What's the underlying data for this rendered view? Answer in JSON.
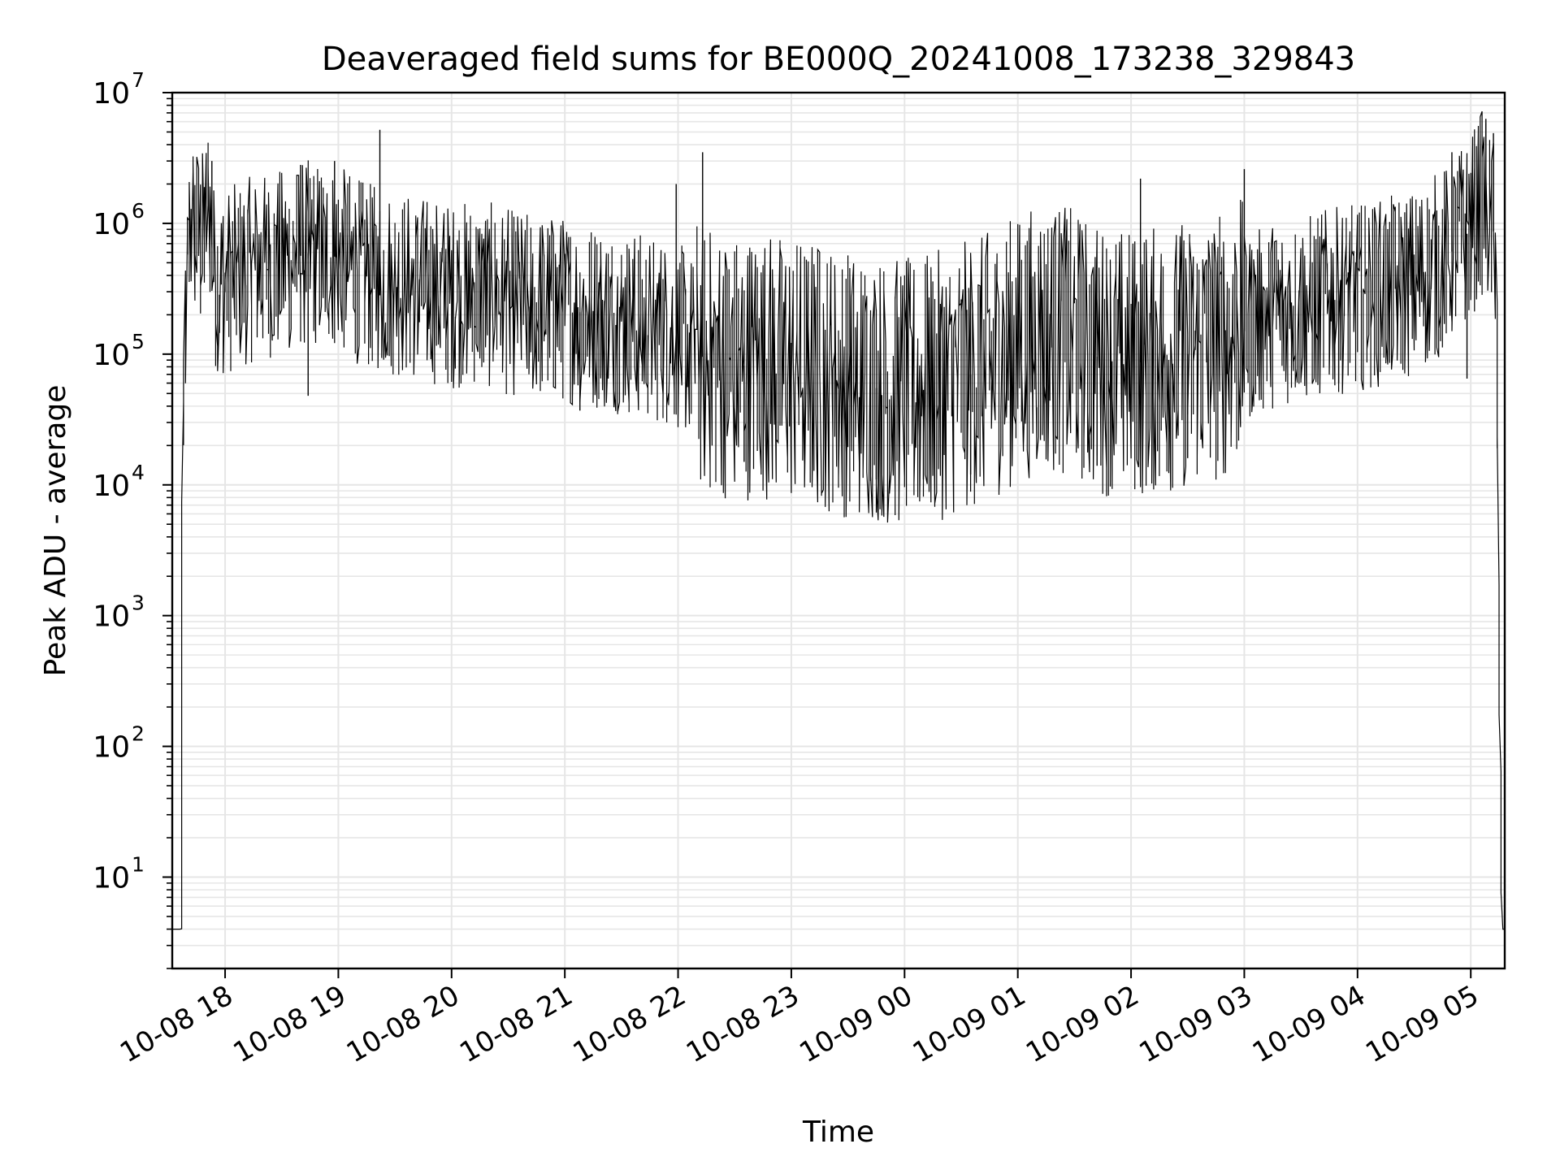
{
  "chart_data": {
    "type": "line",
    "title": "Deaveraged field sums for BE000Q_20241008_173238_329843",
    "xlabel": "Time",
    "ylabel": "Peak ADU - average",
    "yscale": "log",
    "ylim": [
      2,
      10000000
    ],
    "xlim": [
      "2024-10-08 17:32",
      "2024-10-09 05:18"
    ],
    "grid": true,
    "grid_minor": true,
    "line_color": "#000000",
    "grid_color": "#e6e6e6",
    "x_ticks": [
      {
        "t": "2024-10-08 18:00",
        "label": "10-08 18"
      },
      {
        "t": "2024-10-08 19:00",
        "label": "10-08 19"
      },
      {
        "t": "2024-10-08 20:00",
        "label": "10-08 20"
      },
      {
        "t": "2024-10-08 21:00",
        "label": "10-08 21"
      },
      {
        "t": "2024-10-08 22:00",
        "label": "10-08 22"
      },
      {
        "t": "2024-10-08 23:00",
        "label": "10-08 23"
      },
      {
        "t": "2024-10-09 00:00",
        "label": "10-09 00"
      },
      {
        "t": "2024-10-09 01:00",
        "label": "10-09 01"
      },
      {
        "t": "2024-10-09 02:00",
        "label": "10-09 02"
      },
      {
        "t": "2024-10-09 03:00",
        "label": "10-09 03"
      },
      {
        "t": "2024-10-09 04:00",
        "label": "10-09 04"
      },
      {
        "t": "2024-10-09 05:00",
        "label": "10-09 05"
      }
    ],
    "y_ticks": [
      {
        "value": 10,
        "base": "10",
        "exp": "1"
      },
      {
        "value": 100,
        "base": "10",
        "exp": "2"
      },
      {
        "value": 1000,
        "base": "10",
        "exp": "3"
      },
      {
        "value": 10000,
        "base": "10",
        "exp": "4"
      },
      {
        "value": 100000,
        "base": "10",
        "exp": "5"
      },
      {
        "value": 1000000,
        "base": "10",
        "exp": "6"
      },
      {
        "value": 10000000,
        "base": "10",
        "exp": "7"
      }
    ],
    "series": [
      {
        "points": [
          [
            "2024-10-08 17:32",
            4
          ],
          [
            "2024-10-08 17:37",
            4
          ],
          [
            "2024-10-08 17:38",
            20000
          ],
          [
            "2024-10-08 17:39",
            80000
          ],
          [
            "2024-10-08 17:42",
            1000000
          ],
          [
            "2024-10-08 17:45",
            900000
          ],
          [
            "2024-10-08 17:48",
            600000
          ],
          [
            "2024-10-08 17:52",
            1500000
          ],
          [
            "2024-10-08 17:55",
            400000
          ],
          [
            "2024-10-08 18:00",
            350000
          ],
          [
            "2024-10-08 18:15",
            450000
          ],
          [
            "2024-10-08 18:30",
            500000
          ],
          [
            "2024-10-08 18:45",
            600000
          ],
          [
            "2024-10-08 19:00",
            550000
          ],
          [
            "2024-10-08 19:15",
            400000
          ],
          [
            "2024-10-08 19:30",
            350000
          ],
          [
            "2024-10-08 19:45",
            320000
          ],
          [
            "2024-10-08 20:00",
            280000
          ],
          [
            "2024-10-08 20:15",
            300000
          ],
          [
            "2024-10-08 20:30",
            250000
          ],
          [
            "2024-10-08 20:45",
            230000
          ],
          [
            "2024-10-08 21:00",
            220000
          ],
          [
            "2024-10-08 21:15",
            200000
          ],
          [
            "2024-10-08 21:30",
            180000
          ],
          [
            "2024-10-08 21:45",
            160000
          ],
          [
            "2024-10-08 22:00",
            140000
          ],
          [
            "2024-10-08 22:15",
            90000
          ],
          [
            "2024-10-08 22:30",
            80000
          ],
          [
            "2024-10-08 22:45",
            85000
          ],
          [
            "2024-10-08 23:00",
            75000
          ],
          [
            "2024-10-08 23:15",
            70000
          ],
          [
            "2024-10-08 23:30",
            60000
          ],
          [
            "2024-10-08 23:45",
            55000
          ],
          [
            "2024-10-09 00:00",
            50000
          ],
          [
            "2024-10-09 00:15",
            55000
          ],
          [
            "2024-10-09 00:30",
            65000
          ],
          [
            "2024-10-09 00:45",
            80000
          ],
          [
            "2024-10-09 01:00",
            110000
          ],
          [
            "2024-10-09 01:15",
            140000
          ],
          [
            "2024-10-09 01:30",
            120000
          ],
          [
            "2024-10-09 01:45",
            90000
          ],
          [
            "2024-10-09 02:00",
            85000
          ],
          [
            "2024-10-09 02:15",
            90000
          ],
          [
            "2024-10-09 02:30",
            100000
          ],
          [
            "2024-10-09 02:45",
            110000
          ],
          [
            "2024-10-09 03:00",
            150000
          ],
          [
            "2024-10-09 03:15",
            200000
          ],
          [
            "2024-10-09 03:30",
            220000
          ],
          [
            "2024-10-09 03:45",
            250000
          ],
          [
            "2024-10-09 04:00",
            270000
          ],
          [
            "2024-10-09 04:15",
            300000
          ],
          [
            "2024-10-09 04:30",
            350000
          ],
          [
            "2024-10-09 04:45",
            500000
          ],
          [
            "2024-10-09 05:00",
            900000
          ],
          [
            "2024-10-09 05:07",
            1500000
          ],
          [
            "2024-10-09 05:14",
            700000
          ],
          [
            "2024-10-09 05:15",
            2000
          ],
          [
            "2024-10-09 05:16",
            150
          ],
          [
            "2024-10-09 05:17",
            4
          ],
          [
            "2024-10-09 05:18",
            4
          ]
        ],
        "spikes": [
          [
            "2024-10-08 17:53",
            3000000
          ],
          [
            "2024-10-08 18:40",
            2800000
          ],
          [
            "2024-10-08 18:58",
            3000000
          ],
          [
            "2024-10-08 19:22",
            5200000
          ],
          [
            "2024-10-08 18:44",
            48000
          ],
          [
            "2024-10-08 21:08",
            37000
          ],
          [
            "2024-10-08 22:13",
            3500000
          ],
          [
            "2024-10-08 21:59",
            2000000
          ],
          [
            "2024-10-08 22:35",
            15000
          ],
          [
            "2024-10-08 23:45",
            11000
          ],
          [
            "2024-10-09 00:10",
            11000
          ],
          [
            "2024-10-09 00:35",
            12000
          ],
          [
            "2024-10-09 01:42",
            14000
          ],
          [
            "2024-10-09 02:30",
            16000
          ],
          [
            "2024-10-09 03:00",
            2600000
          ],
          [
            "2024-10-09 02:05",
            2200000
          ],
          [
            "2024-10-09 04:50",
            3500000
          ],
          [
            "2024-10-09 05:08",
            6300000
          ],
          [
            "2024-10-09 05:12",
            4900000
          ],
          [
            "2024-10-09 03:50",
            60000
          ],
          [
            "2024-10-09 04:58",
            65000
          ]
        ]
      }
    ]
  }
}
